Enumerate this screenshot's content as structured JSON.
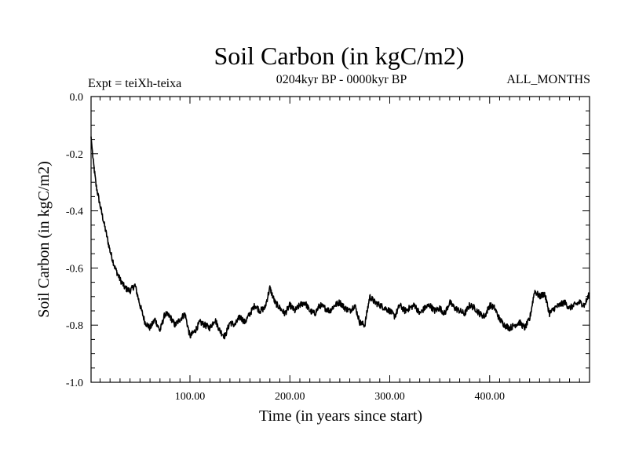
{
  "chart_data": {
    "type": "line",
    "title": "Soil Carbon (in kgC/m2)",
    "subtitle_left": "Expt = teiXh-teixa",
    "subtitle_center": "0204kyr BP - 0000kyr BP",
    "subtitle_right": "ALL_MONTHS",
    "xlabel": "Time (in years since start)",
    "ylabel": "Soil Carbon (in kgC/m2)",
    "xlim": [
      1,
      500
    ],
    "ylim": [
      -1.0,
      0.0
    ],
    "x_ticks": [
      {
        "value": 100,
        "label": "100.00"
      },
      {
        "value": 200,
        "label": "200.00"
      },
      {
        "value": 300,
        "label": "300.00"
      },
      {
        "value": 400,
        "label": "400.00"
      }
    ],
    "y_ticks": [
      {
        "value": 0.0,
        "label": "0.0"
      },
      {
        "value": -0.2,
        "label": "-0.2"
      },
      {
        "value": -0.4,
        "label": "-0.4"
      },
      {
        "value": -0.6,
        "label": "-0.6"
      },
      {
        "value": -0.8,
        "label": "-0.8"
      },
      {
        "value": -1.0,
        "label": "-1.0"
      }
    ],
    "series": [
      {
        "name": "Soil Carbon",
        "color": "#000000",
        "x": [
          1,
          3,
          6,
          10,
          15,
          20,
          25,
          30,
          35,
          40,
          45,
          50,
          55,
          60,
          65,
          70,
          75,
          80,
          85,
          90,
          95,
          100,
          105,
          110,
          115,
          120,
          125,
          130,
          135,
          140,
          145,
          150,
          155,
          160,
          165,
          170,
          175,
          180,
          185,
          190,
          195,
          200,
          205,
          210,
          215,
          220,
          225,
          230,
          235,
          240,
          245,
          250,
          255,
          260,
          265,
          270,
          275,
          280,
          285,
          290,
          295,
          300,
          305,
          310,
          315,
          320,
          325,
          330,
          335,
          340,
          345,
          350,
          355,
          360,
          365,
          370,
          375,
          380,
          385,
          390,
          395,
          400,
          405,
          410,
          415,
          420,
          425,
          430,
          435,
          440,
          445,
          450,
          455,
          460,
          465,
          470,
          475,
          480,
          485,
          490,
          495,
          500
        ],
        "values": [
          -0.14,
          -0.22,
          -0.31,
          -0.38,
          -0.46,
          -0.54,
          -0.6,
          -0.64,
          -0.67,
          -0.68,
          -0.66,
          -0.73,
          -0.79,
          -0.81,
          -0.78,
          -0.82,
          -0.76,
          -0.77,
          -0.8,
          -0.78,
          -0.76,
          -0.84,
          -0.82,
          -0.79,
          -0.8,
          -0.81,
          -0.78,
          -0.82,
          -0.84,
          -0.79,
          -0.8,
          -0.77,
          -0.79,
          -0.76,
          -0.73,
          -0.75,
          -0.74,
          -0.67,
          -0.72,
          -0.74,
          -0.76,
          -0.73,
          -0.75,
          -0.73,
          -0.72,
          -0.75,
          -0.76,
          -0.73,
          -0.74,
          -0.75,
          -0.73,
          -0.72,
          -0.74,
          -0.75,
          -0.73,
          -0.79,
          -0.8,
          -0.7,
          -0.72,
          -0.73,
          -0.74,
          -0.75,
          -0.77,
          -0.73,
          -0.75,
          -0.74,
          -0.73,
          -0.76,
          -0.74,
          -0.73,
          -0.75,
          -0.74,
          -0.76,
          -0.72,
          -0.74,
          -0.75,
          -0.76,
          -0.73,
          -0.74,
          -0.76,
          -0.77,
          -0.73,
          -0.74,
          -0.78,
          -0.8,
          -0.81,
          -0.8,
          -0.79,
          -0.81,
          -0.78,
          -0.68,
          -0.7,
          -0.69,
          -0.76,
          -0.74,
          -0.73,
          -0.72,
          -0.74,
          -0.73,
          -0.72,
          -0.73,
          -0.69
        ]
      }
    ]
  }
}
